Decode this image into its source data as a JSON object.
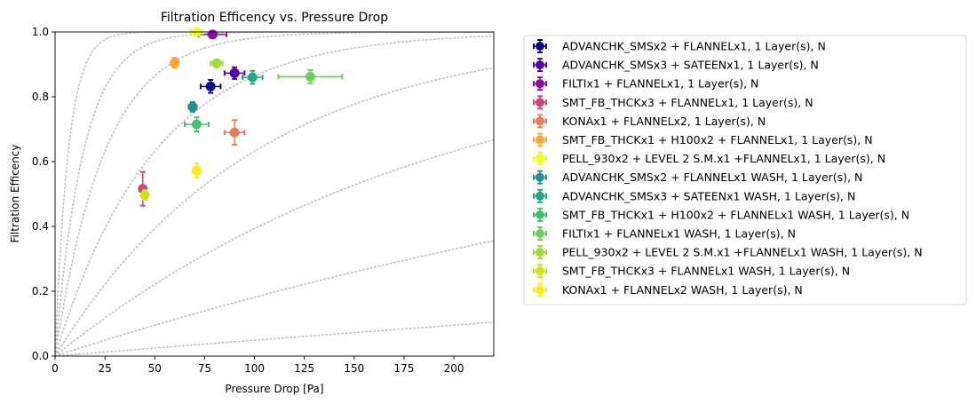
{
  "chart_data": {
    "type": "scatter",
    "title": "Filtration Efficency vs. Pressure Drop",
    "xlabel": "Pressure Drop [Pa]",
    "ylabel": "Filtration Efficency",
    "xlim": [
      0,
      220
    ],
    "ylim": [
      0,
      1.0
    ],
    "xticks": [
      0,
      25,
      50,
      75,
      100,
      125,
      150,
      175,
      200
    ],
    "yticks": [
      0.0,
      0.2,
      0.4,
      0.6,
      0.8,
      1.0
    ],
    "xtick_labels": [
      "0",
      "25",
      "50",
      "75",
      "100",
      "125",
      "150",
      "175",
      "200"
    ],
    "ytick_labels": [
      "0.0",
      "0.2",
      "0.4",
      "0.6",
      "0.8",
      "1.0"
    ],
    "grid": false,
    "legend_placement": "outside-right",
    "reference_curves": {
      "style": "dotted",
      "color": "#c0c0c0",
      "quality_factors": [
        0.0005,
        0.002,
        0.005,
        0.01,
        0.02,
        0.04,
        0.07,
        0.15
      ]
    },
    "series": [
      {
        "name": "ADVANCHK_SMSx2 + FLANNELx1, 1 Layer(s), N",
        "color": "#0d0887",
        "x": 78,
        "y": 0.832,
        "xerr": 5,
        "yerr": 0.02
      },
      {
        "name": "ADVANCHK_SMSx3 + SATEENx1, 1 Layer(s), N",
        "color": "#5302a3",
        "x": 90,
        "y": 0.873,
        "xerr": 5,
        "yerr": 0.018
      },
      {
        "name": "FILTIx1 + FLANNELx1, 1 Layer(s), N",
        "color": "#8b0aa5",
        "x": 79,
        "y": 0.992,
        "xerr": 7,
        "yerr": 0.01
      },
      {
        "name": "SMT_FB_THCKx3 + FLANNELx1, 1 Layer(s), N",
        "color": "#cc4778",
        "x": 44,
        "y": 0.516,
        "xerr": 1,
        "yerr": 0.052
      },
      {
        "name": "KONAx1 + FLANNELx2, 1 Layer(s), N",
        "color": "#e87b5a",
        "x": 90,
        "y": 0.69,
        "xerr": 5,
        "yerr": 0.038
      },
      {
        "name": "SMT_FB_THCKx1 + H100x2 + FLANNELx1, 1 Layer(s), N",
        "color": "#fca636",
        "x": 60,
        "y": 0.905,
        "xerr": 2,
        "yerr": 0.015
      },
      {
        "name": "PELL_930x2 + LEVEL 2 S.M.x1 +FLANNELx1, 1 Layer(s), N",
        "color": "#f0f921",
        "x": 71,
        "y": 1.0,
        "xerr": 3,
        "yerr": 0.005
      },
      {
        "name": "ADVANCHK_SMSx2 + FLANNELx1 WASH, 1 Layer(s), N",
        "color": "#21918c",
        "x": 69,
        "y": 0.769,
        "xerr": 2,
        "yerr": 0.015
      },
      {
        "name": "ADVANCHK_SMSx3 + SATEENx1 WASH, 1 Layer(s), N",
        "color": "#22a884",
        "x": 99,
        "y": 0.86,
        "xerr": 5,
        "yerr": 0.02
      },
      {
        "name": "SMT_FB_THCKx1 + H100x2 + FLANNELx1 WASH, 1 Layer(s), N",
        "color": "#44bf70",
        "x": 71,
        "y": 0.715,
        "xerr": 6,
        "yerr": 0.022
      },
      {
        "name": "FILTIx1 + FLANNELx1 WASH, 1 Layer(s), N",
        "color": "#6ccd5a",
        "x": 128,
        "y": 0.862,
        "xerr": 16,
        "yerr": 0.02
      },
      {
        "name": "PELL_930x2 + LEVEL 2 S.M.x1 +FLANNELx1 WASH, 1 Layer(s), N",
        "color": "#9fda3a",
        "x": 81,
        "y": 0.903,
        "xerr": 3,
        "yerr": 0.01
      },
      {
        "name": "SMT_FB_THCKx3 + FLANNELx1 WASH, 1 Layer(s), N",
        "color": "#cde11d",
        "x": 45,
        "y": 0.497,
        "xerr": 1,
        "yerr": 0.015
      },
      {
        "name": "KONAx1 + FLANNELx2 WASH, 1 Layer(s), N",
        "color": "#fde725",
        "x": 71,
        "y": 0.573,
        "xerr": 2,
        "yerr": 0.022
      }
    ]
  }
}
